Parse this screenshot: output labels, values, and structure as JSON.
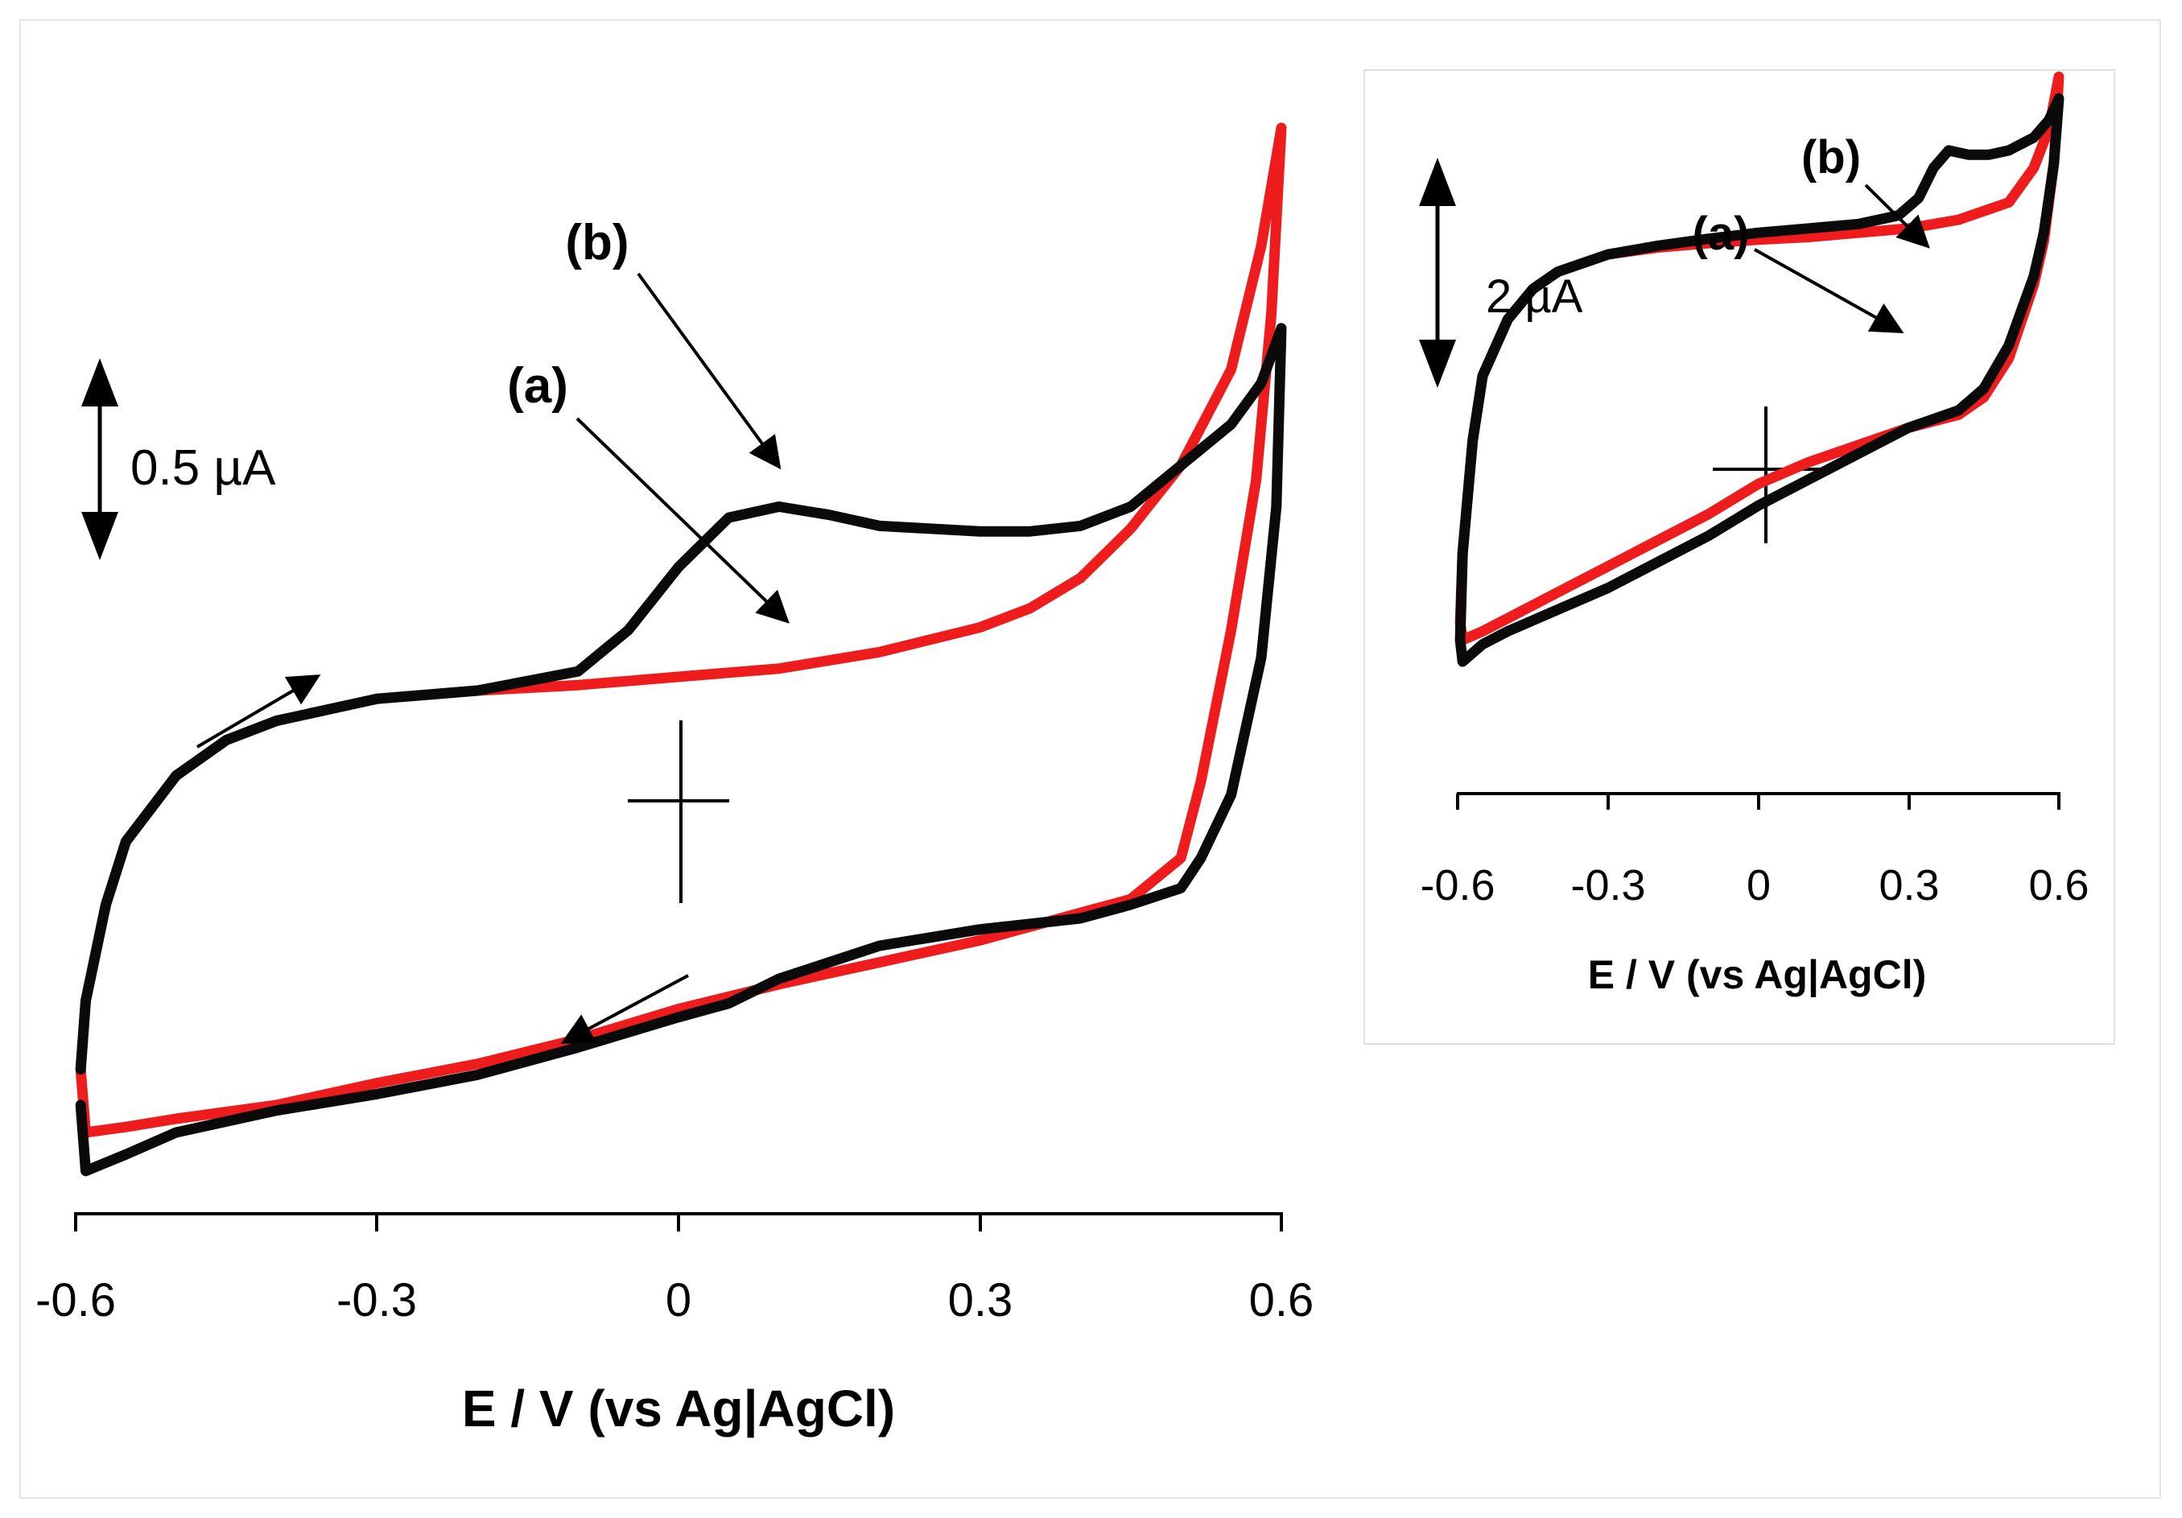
{
  "colors": {
    "curve_a": "#ee1c1c",
    "curve_b": "#0a0a0a",
    "axis": "#000000"
  },
  "chart_data": [
    {
      "type": "line",
      "panel": "main",
      "xlabel": "E / V (vs Ag|AgCl)",
      "xticks": [
        "-0.6",
        "-0.3",
        "0",
        "0.3",
        "0.6"
      ],
      "xlim": [
        -0.6,
        0.6
      ],
      "ylim": [
        -1.55,
        2.35
      ],
      "units": "µA",
      "scale_bar": {
        "label": "0.5 µA",
        "value": 0.5
      },
      "labels": {
        "a": "(a)",
        "b": "(b)"
      },
      "series": [
        {
          "key": "a",
          "x": [
            -0.595,
            -0.59,
            -0.57,
            -0.55,
            -0.5,
            -0.45,
            -0.4,
            -0.3,
            -0.2,
            -0.1,
            0.0,
            0.1,
            0.2,
            0.3,
            0.35,
            0.4,
            0.45,
            0.5,
            0.55,
            0.58,
            0.6,
            0.6,
            0.59,
            0.575,
            0.55,
            0.52,
            0.5,
            0.45,
            0.4,
            0.3,
            0.2,
            0.1,
            0.0,
            -0.1,
            -0.2,
            -0.3,
            -0.4,
            -0.5,
            -0.55,
            -0.59,
            -0.595
          ],
          "y": [
            -1.15,
            -0.9,
            -0.55,
            -0.32,
            -0.08,
            0.05,
            0.12,
            0.2,
            0.23,
            0.25,
            0.28,
            0.31,
            0.37,
            0.46,
            0.53,
            0.64,
            0.82,
            1.05,
            1.4,
            1.85,
            2.28,
            2.28,
            1.6,
            1.0,
            0.45,
            -0.1,
            -0.38,
            -0.53,
            -0.58,
            -0.68,
            -0.76,
            -0.84,
            -0.93,
            -1.04,
            -1.13,
            -1.2,
            -1.28,
            -1.33,
            -1.36,
            -1.38,
            -1.15
          ]
        },
        {
          "key": "b",
          "x": [
            -0.595,
            -0.59,
            -0.57,
            -0.55,
            -0.5,
            -0.45,
            -0.4,
            -0.3,
            -0.2,
            -0.1,
            -0.05,
            0.0,
            0.05,
            0.1,
            0.15,
            0.2,
            0.3,
            0.35,
            0.4,
            0.45,
            0.5,
            0.55,
            0.58,
            0.6,
            0.6,
            0.595,
            0.58,
            0.55,
            0.52,
            0.5,
            0.45,
            0.4,
            0.3,
            0.2,
            0.1,
            0.05,
            0.0,
            -0.1,
            -0.2,
            -0.3,
            -0.4,
            -0.5,
            -0.55,
            -0.59,
            -0.595
          ],
          "y": [
            -1.15,
            -0.9,
            -0.55,
            -0.32,
            -0.08,
            0.05,
            0.12,
            0.2,
            0.23,
            0.3,
            0.45,
            0.68,
            0.86,
            0.9,
            0.87,
            0.83,
            0.81,
            0.81,
            0.83,
            0.9,
            1.05,
            1.2,
            1.35,
            1.55,
            1.55,
            0.9,
            0.35,
            -0.15,
            -0.38,
            -0.49,
            -0.55,
            -0.6,
            -0.64,
            -0.7,
            -0.82,
            -0.91,
            -0.96,
            -1.07,
            -1.17,
            -1.24,
            -1.3,
            -1.38,
            -1.46,
            -1.52,
            -1.28
          ]
        }
      ]
    },
    {
      "type": "line",
      "panel": "inset",
      "xlabel": "E / V (vs Ag|AgCl)",
      "xticks": [
        "-0.6",
        "-0.3",
        "0",
        "0.3",
        "0.6"
      ],
      "xlim": [
        -0.6,
        0.6
      ],
      "ylim": [
        -3.8,
        3.4
      ],
      "units": "µA",
      "scale_bar": {
        "label": "2 µA",
        "value": 2
      },
      "labels": {
        "a": "(a)",
        "b": "(b)"
      },
      "series": [
        {
          "key": "a",
          "x": [
            -0.595,
            -0.59,
            -0.57,
            -0.55,
            -0.5,
            -0.45,
            -0.4,
            -0.3,
            -0.2,
            -0.1,
            0.0,
            0.1,
            0.2,
            0.3,
            0.4,
            0.5,
            0.55,
            0.58,
            0.6,
            0.6,
            0.59,
            0.57,
            0.55,
            0.5,
            0.45,
            0.4,
            0.3,
            0.2,
            0.1,
            0.0,
            -0.1,
            -0.2,
            -0.3,
            -0.4,
            -0.5,
            -0.55,
            -0.59,
            -0.595
          ],
          "y": [
            -2.3,
            -1.5,
            -0.2,
            0.55,
            1.2,
            1.55,
            1.75,
            1.95,
            2.03,
            2.08,
            2.12,
            2.15,
            2.2,
            2.25,
            2.35,
            2.55,
            2.95,
            3.4,
            4.0,
            4.0,
            3.0,
            2.1,
            1.6,
            0.75,
            0.3,
            0.1,
            -0.05,
            -0.25,
            -0.45,
            -0.7,
            -1.05,
            -1.35,
            -1.65,
            -1.95,
            -2.25,
            -2.4,
            -2.5,
            -2.3
          ]
        },
        {
          "key": "b",
          "x": [
            -0.595,
            -0.59,
            -0.57,
            -0.55,
            -0.5,
            -0.45,
            -0.4,
            -0.3,
            -0.2,
            -0.1,
            0.0,
            0.1,
            0.2,
            0.28,
            0.32,
            0.35,
            0.38,
            0.42,
            0.46,
            0.5,
            0.55,
            0.58,
            0.6,
            0.6,
            0.59,
            0.57,
            0.55,
            0.5,
            0.45,
            0.4,
            0.3,
            0.2,
            0.1,
            0.0,
            -0.1,
            -0.2,
            -0.3,
            -0.4,
            -0.5,
            -0.55,
            -0.59,
            -0.595
          ],
          "y": [
            -2.5,
            -1.5,
            -0.2,
            0.55,
            1.2,
            1.55,
            1.75,
            1.95,
            2.05,
            2.13,
            2.2,
            2.25,
            2.3,
            2.4,
            2.6,
            2.95,
            3.15,
            3.1,
            3.1,
            3.15,
            3.3,
            3.5,
            3.75,
            3.75,
            3.0,
            2.2,
            1.7,
            0.9,
            0.4,
            0.15,
            -0.05,
            -0.35,
            -0.65,
            -0.95,
            -1.3,
            -1.6,
            -1.9,
            -2.15,
            -2.4,
            -2.55,
            -2.75,
            -2.5
          ]
        }
      ]
    }
  ]
}
